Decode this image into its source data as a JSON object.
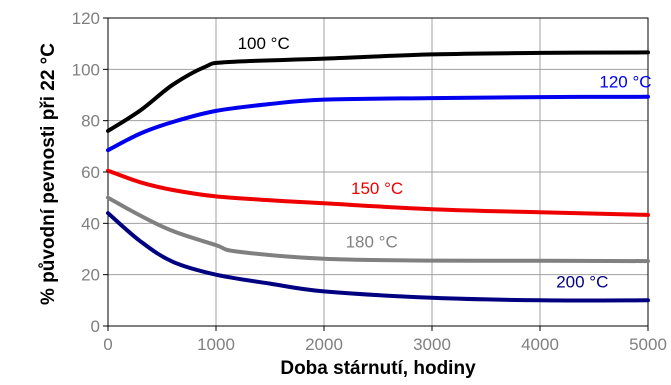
{
  "chart_data": {
    "type": "line",
    "title": "",
    "xlabel": "Doba stárnutí, hodiny",
    "ylabel": "% původní pevnosti při 22 °C",
    "xlim": [
      0,
      5000
    ],
    "ylim": [
      0,
      120
    ],
    "x_ticks": [
      0,
      1000,
      2000,
      3000,
      4000,
      5000
    ],
    "y_ticks": [
      0,
      20,
      40,
      60,
      80,
      100,
      120
    ],
    "grid": true,
    "legend": "inline labels",
    "series": [
      {
        "name": "100 °C",
        "color": "#000000",
        "points": [
          [
            0,
            76
          ],
          [
            300,
            84
          ],
          [
            600,
            94
          ],
          [
            900,
            101
          ],
          [
            1100,
            102.8
          ],
          [
            2000,
            104.2
          ],
          [
            3000,
            105.8
          ],
          [
            4000,
            106.4
          ],
          [
            5000,
            106.6
          ]
        ],
        "label_at": [
          1200,
          108
        ]
      },
      {
        "name": "120 °C",
        "color": "#0000ee",
        "points": [
          [
            0,
            68.5
          ],
          [
            300,
            75
          ],
          [
            600,
            79.5
          ],
          [
            1000,
            83.8
          ],
          [
            1500,
            86.5
          ],
          [
            2000,
            88.2
          ],
          [
            3000,
            88.8
          ],
          [
            4000,
            89.2
          ],
          [
            5000,
            89.3
          ]
        ],
        "label_at": [
          4550,
          93
        ]
      },
      {
        "name": "150 °C",
        "color": "#ee0000",
        "points": [
          [
            0,
            60.5
          ],
          [
            300,
            56
          ],
          [
            600,
            53
          ],
          [
            1000,
            50.5
          ],
          [
            1500,
            49
          ],
          [
            2000,
            47.8
          ],
          [
            3000,
            45.5
          ],
          [
            4000,
            44.3
          ],
          [
            5000,
            43.3
          ]
        ],
        "label_at": [
          2250,
          51.5
        ]
      },
      {
        "name": "180 °C",
        "color": "#808080",
        "points": [
          [
            0,
            50
          ],
          [
            300,
            43
          ],
          [
            600,
            37
          ],
          [
            1000,
            31.5
          ],
          [
            1200,
            29
          ],
          [
            2000,
            26.2
          ],
          [
            3000,
            25.5
          ],
          [
            4000,
            25.4
          ],
          [
            5000,
            25.3
          ]
        ],
        "label_at": [
          2200,
          30.5
        ]
      },
      {
        "name": "200 °C",
        "color": "#000080",
        "points": [
          [
            0,
            44
          ],
          [
            300,
            33
          ],
          [
            600,
            25
          ],
          [
            1000,
            20
          ],
          [
            1500,
            16.5
          ],
          [
            2000,
            13.5
          ],
          [
            3000,
            11
          ],
          [
            4000,
            10
          ],
          [
            5000,
            10
          ]
        ],
        "label_at": [
          4150,
          15
        ]
      }
    ]
  }
}
